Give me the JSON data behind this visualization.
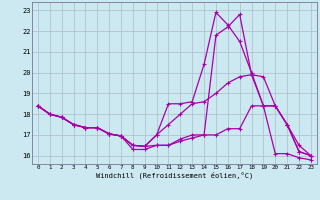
{
  "xlabel": "Windchill (Refroidissement éolien,°C)",
  "xlim": [
    -0.5,
    23.5
  ],
  "ylim": [
    15.6,
    23.4
  ],
  "yticks": [
    16,
    17,
    18,
    19,
    20,
    21,
    22,
    23
  ],
  "xticks": [
    0,
    1,
    2,
    3,
    4,
    5,
    6,
    7,
    8,
    9,
    10,
    11,
    12,
    13,
    14,
    15,
    16,
    17,
    18,
    19,
    20,
    21,
    22,
    23
  ],
  "background_color": "#cce8f0",
  "grid_color": "#aabbcc",
  "line_color": "#aa00aa",
  "line1_x": [
    0,
    1,
    2,
    3,
    4,
    5,
    6,
    7,
    8,
    9,
    10,
    11,
    12,
    13,
    14,
    15,
    16,
    17,
    18,
    19,
    20,
    21,
    22,
    23
  ],
  "line1_y": [
    18.4,
    18.0,
    17.85,
    17.5,
    17.35,
    17.35,
    17.05,
    16.95,
    16.5,
    16.45,
    17.0,
    18.5,
    18.5,
    18.6,
    20.4,
    22.9,
    22.3,
    21.5,
    20.0,
    18.4,
    16.1,
    16.1,
    15.9,
    15.8
  ],
  "line2_x": [
    0,
    1,
    2,
    3,
    4,
    5,
    6,
    7,
    8,
    9,
    10,
    11,
    12,
    13,
    14,
    15,
    16,
    17,
    18,
    19,
    20,
    21,
    22,
    23
  ],
  "line2_y": [
    18.4,
    18.0,
    17.85,
    17.5,
    17.35,
    17.35,
    17.05,
    16.95,
    16.5,
    16.45,
    17.0,
    17.5,
    18.0,
    18.5,
    18.6,
    19.0,
    19.5,
    19.8,
    19.9,
    19.8,
    18.4,
    17.5,
    16.5,
    16.0
  ],
  "line3_x": [
    0,
    1,
    2,
    3,
    4,
    5,
    6,
    7,
    8,
    9,
    10,
    11,
    12,
    13,
    14,
    15,
    16,
    17,
    18,
    19,
    20,
    21,
    22,
    23
  ],
  "line3_y": [
    18.4,
    18.0,
    17.85,
    17.5,
    17.35,
    17.35,
    17.05,
    16.95,
    16.5,
    16.45,
    16.5,
    16.5,
    16.8,
    17.0,
    17.0,
    21.8,
    22.2,
    22.8,
    19.9,
    18.4,
    18.4,
    17.5,
    16.2,
    16.0
  ],
  "line4_x": [
    0,
    1,
    2,
    3,
    4,
    5,
    6,
    7,
    8,
    9,
    10,
    11,
    12,
    13,
    14,
    15,
    16,
    17,
    18,
    19,
    20,
    21,
    22,
    23
  ],
  "line4_y": [
    18.4,
    18.0,
    17.85,
    17.5,
    17.35,
    17.35,
    17.05,
    16.95,
    16.3,
    16.3,
    16.5,
    16.5,
    16.7,
    16.85,
    17.0,
    17.0,
    17.3,
    17.3,
    18.4,
    18.4,
    18.4,
    17.5,
    16.2,
    16.0
  ]
}
